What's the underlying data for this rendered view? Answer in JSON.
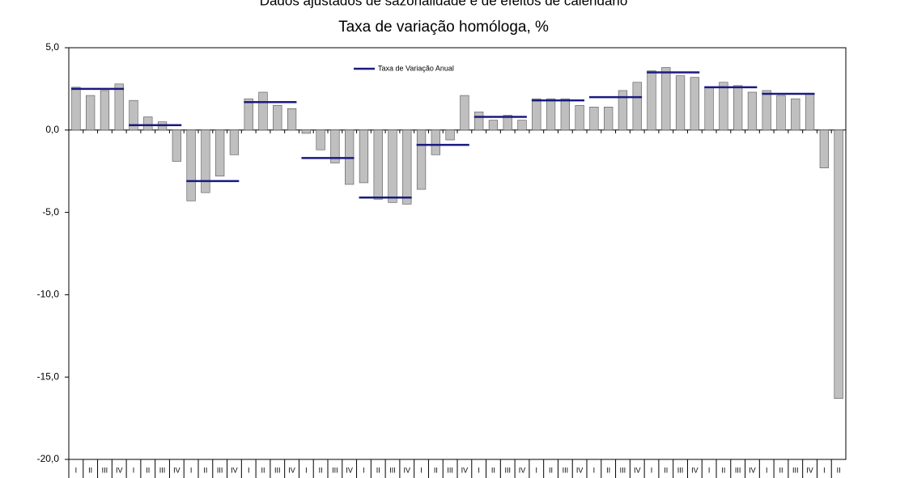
{
  "chart_data": {
    "type": "bar",
    "subtitle": "Dados ajustados de sazonalidade e de efeitos de calendário",
    "title": "Taxa de variação homóloga, %",
    "categories": [
      "I",
      "II",
      "III",
      "IV",
      "I",
      "II",
      "III",
      "IV",
      "I",
      "II",
      "III",
      "IV",
      "I",
      "II",
      "III",
      "IV",
      "I",
      "II",
      "III",
      "IV",
      "I",
      "II",
      "III",
      "IV",
      "I",
      "II",
      "III",
      "IV",
      "I",
      "II",
      "III",
      "IV",
      "I",
      "II",
      "III",
      "IV",
      "I",
      "II",
      "III",
      "IV",
      "I",
      "II",
      "III",
      "IV",
      "I",
      "II",
      "III",
      "IV",
      "I",
      "II",
      "III",
      "IV",
      "I",
      "II"
    ],
    "values": [
      2.6,
      2.1,
      2.4,
      2.8,
      1.8,
      0.8,
      0.5,
      -1.9,
      -4.3,
      -3.8,
      -2.8,
      -1.5,
      1.9,
      2.3,
      1.5,
      1.3,
      -0.2,
      -1.2,
      -2.0,
      -3.3,
      -3.2,
      -4.2,
      -4.4,
      -4.5,
      -3.6,
      -1.5,
      -0.6,
      2.1,
      1.1,
      0.6,
      0.9,
      0.6,
      1.9,
      1.9,
      1.9,
      1.5,
      1.4,
      1.4,
      2.4,
      2.9,
      3.6,
      3.8,
      3.3,
      3.2,
      2.6,
      2.9,
      2.7,
      2.3,
      2.4,
      2.1,
      1.9,
      2.2,
      -2.3,
      -16.3
    ],
    "color": "#bfbfbf",
    "annual": {
      "name": "Taxa de Variação Anual",
      "color": "#1a1a80",
      "values": [
        2.5,
        0.3,
        -3.1,
        1.7,
        -1.7,
        -4.1,
        -0.9,
        0.8,
        1.8,
        2.0,
        3.5,
        2.6,
        2.2
      ]
    },
    "ylim": [
      -20,
      5
    ],
    "yticks": [
      {
        "value": -20,
        "label": "-20,0"
      },
      {
        "value": -15,
        "label": "-15,0"
      },
      {
        "value": -10,
        "label": "-10,0"
      },
      {
        "value": -5,
        "label": "-5,0"
      },
      {
        "value": 0,
        "label": "0,0"
      },
      {
        "value": 5,
        "label": "5,0"
      }
    ]
  }
}
